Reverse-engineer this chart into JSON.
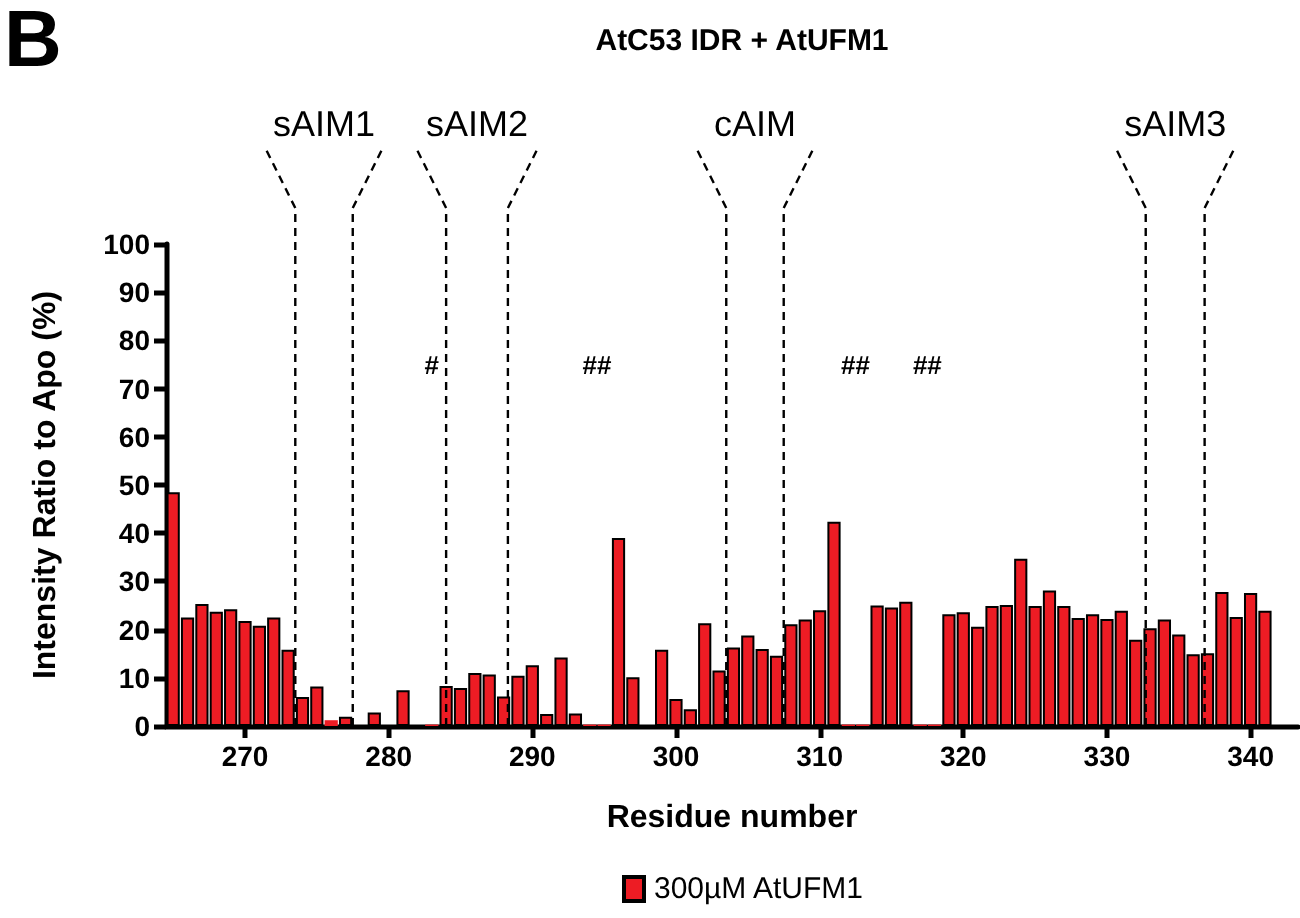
{
  "chart_data": {
    "type": "bar",
    "title": "AtC53 IDR + AtUFM1",
    "xlabel": "Residue number",
    "ylabel": "Intensity Ratio to Apo (%)",
    "x": [
      265,
      266,
      267,
      268,
      269,
      270,
      271,
      272,
      273,
      274,
      275,
      276,
      277,
      278,
      279,
      280,
      281,
      282,
      283,
      284,
      285,
      286,
      287,
      288,
      289,
      290,
      291,
      292,
      293,
      294,
      295,
      296,
      297,
      298,
      299,
      300,
      301,
      302,
      303,
      304,
      305,
      306,
      307,
      308,
      309,
      310,
      311,
      312,
      313,
      314,
      315,
      316,
      317,
      318,
      319,
      320,
      321,
      322,
      323,
      324,
      325,
      326,
      327,
      328,
      329,
      330,
      331,
      332,
      333,
      334,
      335,
      336,
      337,
      338,
      339,
      340,
      341
    ],
    "series": [
      {
        "name": "300µM AtUFM1",
        "color": "#ed1c24",
        "values": [
          48.5,
          22.5,
          25.3,
          23.7,
          24.2,
          21.8,
          20.8,
          22.5,
          15.8,
          6,
          8.2,
          1.2,
          1.9,
          null,
          2.8,
          null,
          7.4,
          null,
          0.3,
          8.3,
          7.9,
          11,
          10.7,
          6.1,
          10.4,
          12.6,
          2.5,
          14.2,
          2.6,
          0.3,
          0.3,
          39,
          10.1,
          null,
          15.8,
          5.6,
          3.5,
          21.3,
          11.5,
          16.3,
          18.8,
          16,
          14.6,
          21.1,
          22.1,
          24,
          42.4,
          0.3,
          0.3,
          25,
          24.6,
          25.8,
          0.3,
          0.3,
          23.2,
          23.6,
          20.6,
          24.9,
          25.1,
          34.7,
          24.9,
          28.1,
          24.9,
          22.4,
          23.2,
          22.2,
          23.9,
          17.9,
          20.3,
          22.1,
          19,
          14.9,
          15.1,
          27.8,
          22.6,
          27.6,
          23.9
        ]
      }
    ],
    "xlim": [
      264.5,
      343.3
    ],
    "xticks": [
      270,
      280,
      290,
      300,
      310,
      320,
      330,
      340
    ],
    "ylim": [
      0,
      100
    ],
    "yticks": [
      0,
      10,
      20,
      30,
      40,
      50,
      60,
      70,
      80,
      90,
      100
    ],
    "ref_lines": [
      {
        "axis": "x",
        "value": 273.5,
        "label": "sAIM1",
        "line_style": "dashed"
      },
      {
        "axis": "x",
        "value": 277.5,
        "line_style": "dashed"
      },
      {
        "axis": "x",
        "value": 284,
        "label": "sAIM2",
        "line_style": "dashed"
      },
      {
        "axis": "x",
        "value": 288.3,
        "line_style": "dashed"
      },
      {
        "axis": "x",
        "value": 303.5,
        "label": "cAIM",
        "line_style": "dashed"
      },
      {
        "axis": "x",
        "value": 307.5,
        "line_style": "dashed"
      },
      {
        "axis": "x",
        "value": 332.7,
        "label": "sAIM3",
        "line_style": "dashed"
      },
      {
        "axis": "x",
        "value": 336.8,
        "line_style": "dashed"
      }
    ],
    "annotations": [
      "B",
      "#",
      "##",
      "##",
      "##"
    ],
    "legend": "bottom",
    "grid": false
  }
}
